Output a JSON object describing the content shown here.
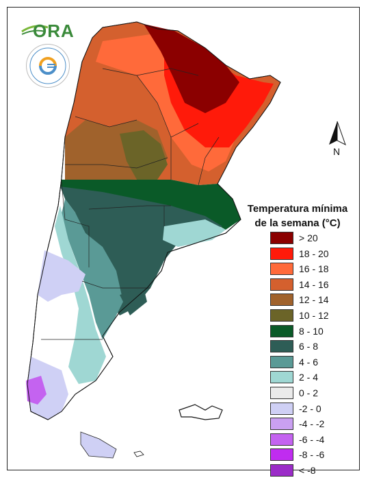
{
  "logo": {
    "ora_text": "ORA"
  },
  "north_arrow": {
    "letter": "N"
  },
  "legend": {
    "title_line1": "Temperatura mínima",
    "title_line2": "de la semana (°C)",
    "items": [
      {
        "label": "> 20",
        "color": "#8b0000"
      },
      {
        "label": "18 - 20",
        "color": "#ff1a0a"
      },
      {
        "label": "16 - 18",
        "color": "#ff6a3a"
      },
      {
        "label": "14 - 16",
        "color": "#d4602e"
      },
      {
        "label": "12 - 14",
        "color": "#a0622c"
      },
      {
        "label": "10 - 12",
        "color": "#6b6428"
      },
      {
        "label": "8 - 10",
        "color": "#0a5a28"
      },
      {
        "label": "6 - 8",
        "color": "#2e5d56"
      },
      {
        "label": "4 - 6",
        "color": "#5a9a96"
      },
      {
        "label": "2 - 4",
        "color": "#9fd7d3"
      },
      {
        "label": "0 - 2",
        "color": "#ebebeb"
      },
      {
        "label": "-2 - 0",
        "color": "#cfd0f5"
      },
      {
        "label": "-4 - -2",
        "color": "#caa0f2"
      },
      {
        "label": "-6 - -4",
        "color": "#c463f0"
      },
      {
        "label": "-8 - -6",
        "color": "#c02cf0"
      },
      {
        "label": "< -8",
        "color": "#9b2cc8"
      }
    ]
  }
}
